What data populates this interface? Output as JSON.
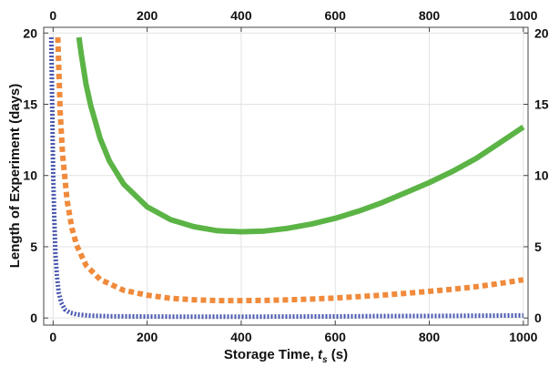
{
  "chart_data": {
    "type": "line",
    "xlabel_prefix": "Storage Time, ",
    "xlabel_symbol": "t",
    "xlabel_subscript": "s",
    "xlabel_unit": " (s)",
    "ylabel": "Length of Experiment (days)",
    "xlim": [
      -20,
      1010
    ],
    "ylim": [
      -0.5,
      20.4
    ],
    "x_ticks": [
      0,
      200,
      400,
      600,
      800,
      1000
    ],
    "y_ticks": [
      0,
      5,
      10,
      15,
      20
    ],
    "grid": true,
    "mirror_axes": true,
    "series": [
      {
        "color": "#5bb445",
        "style": "solid",
        "points": [
          [
            55,
            19.7
          ],
          [
            60,
            18.5
          ],
          [
            70,
            16.4
          ],
          [
            80,
            14.9
          ],
          [
            100,
            12.6
          ],
          [
            120,
            11.0
          ],
          [
            150,
            9.4
          ],
          [
            200,
            7.8
          ],
          [
            250,
            6.9
          ],
          [
            300,
            6.4
          ],
          [
            350,
            6.12
          ],
          [
            400,
            6.05
          ],
          [
            450,
            6.1
          ],
          [
            500,
            6.3
          ],
          [
            550,
            6.6
          ],
          [
            600,
            7.0
          ],
          [
            650,
            7.5
          ],
          [
            700,
            8.1
          ],
          [
            750,
            8.8
          ],
          [
            800,
            9.5
          ],
          [
            850,
            10.3
          ],
          [
            900,
            11.2
          ],
          [
            950,
            12.3
          ],
          [
            1000,
            13.4
          ]
        ]
      },
      {
        "color": "#f08a3c",
        "style": "dashed",
        "points": [
          [
            10,
            19.7
          ],
          [
            15,
            14.5
          ],
          [
            20,
            11.5
          ],
          [
            30,
            8.2
          ],
          [
            40,
            6.3
          ],
          [
            50,
            5.1
          ],
          [
            70,
            3.7
          ],
          [
            100,
            2.7
          ],
          [
            150,
            1.95
          ],
          [
            200,
            1.6
          ],
          [
            250,
            1.38
          ],
          [
            300,
            1.28
          ],
          [
            350,
            1.22
          ],
          [
            400,
            1.22
          ],
          [
            450,
            1.23
          ],
          [
            500,
            1.28
          ],
          [
            550,
            1.33
          ],
          [
            600,
            1.4
          ],
          [
            650,
            1.5
          ],
          [
            700,
            1.6
          ],
          [
            750,
            1.73
          ],
          [
            800,
            1.87
          ],
          [
            850,
            2.02
          ],
          [
            900,
            2.2
          ],
          [
            950,
            2.42
          ],
          [
            1000,
            2.68
          ]
        ]
      },
      {
        "color": "#4a59b0",
        "style": "dotted",
        "points": [
          [
            -4,
            19.7
          ],
          [
            -2,
            15.0
          ],
          [
            0,
            10.5
          ],
          [
            2,
            7.5
          ],
          [
            5,
            4.5
          ],
          [
            8,
            3.0
          ],
          [
            12,
            1.8
          ],
          [
            17,
            1.1
          ],
          [
            25,
            0.6
          ],
          [
            35,
            0.38
          ],
          [
            50,
            0.25
          ],
          [
            80,
            0.16
          ],
          [
            120,
            0.12
          ],
          [
            200,
            0.1
          ],
          [
            300,
            0.09
          ],
          [
            400,
            0.09
          ],
          [
            500,
            0.1
          ],
          [
            600,
            0.11
          ],
          [
            700,
            0.13
          ],
          [
            800,
            0.14
          ],
          [
            900,
            0.16
          ],
          [
            1000,
            0.18
          ]
        ]
      }
    ]
  }
}
